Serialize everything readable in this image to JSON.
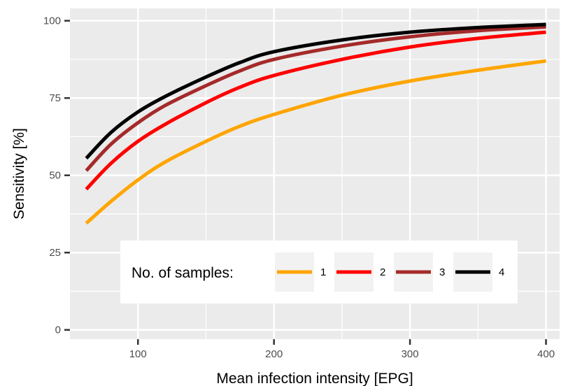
{
  "chart_data": {
    "type": "line",
    "xlabel": "Mean infection intensity [EPG]",
    "ylabel": "Sensitivity [%]",
    "xlim": [
      50,
      410
    ],
    "ylim": [
      -3,
      104
    ],
    "x_ticks": [
      100,
      200,
      300,
      400
    ],
    "y_ticks": [
      0,
      25,
      50,
      75,
      100
    ],
    "grid": true,
    "panel_background": "#ebebeb",
    "legend": {
      "title": "No. of samples:",
      "position": "inside-bottom-center"
    },
    "series": [
      {
        "name": "1",
        "color": "#ffa500",
        "x": [
          62,
          80,
          100,
          120,
          150,
          175,
          200,
          250,
          300,
          350,
          400
        ],
        "y": [
          34.5,
          41.5,
          48.5,
          54.3,
          61.0,
          65.9,
          69.7,
          75.9,
          80.5,
          84.0,
          87.0
        ]
      },
      {
        "name": "2",
        "color": "#ff0000",
        "x": [
          62,
          80,
          100,
          120,
          150,
          175,
          200,
          250,
          300,
          350,
          400
        ],
        "y": [
          45.5,
          53.8,
          61.0,
          66.5,
          73.5,
          78.5,
          82.3,
          87.5,
          91.5,
          94.3,
          96.3
        ]
      },
      {
        "name": "3",
        "color": "#a52a2a",
        "x": [
          62,
          80,
          100,
          120,
          150,
          175,
          200,
          250,
          300,
          350,
          400
        ],
        "y": [
          51.5,
          60.0,
          67.0,
          72.6,
          79.0,
          83.8,
          87.5,
          91.8,
          94.8,
          96.8,
          98.0
        ]
      },
      {
        "name": "4",
        "color": "#000000",
        "x": [
          62,
          80,
          100,
          120,
          150,
          175,
          200,
          250,
          300,
          350,
          400
        ],
        "y": [
          55.5,
          63.8,
          70.5,
          75.5,
          81.8,
          86.5,
          90.0,
          93.8,
          96.3,
          97.8,
          98.8
        ]
      }
    ]
  }
}
